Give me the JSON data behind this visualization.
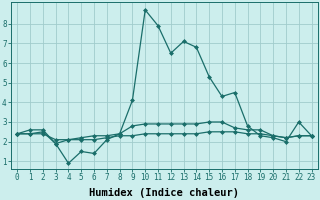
{
  "xlabel": "Humidex (Indice chaleur)",
  "background_color": "#cceeed",
  "grid_color": "#a0cccc",
  "line_color": "#1a6e6a",
  "x_ticks": [
    0,
    1,
    2,
    3,
    4,
    5,
    6,
    7,
    8,
    9,
    10,
    11,
    12,
    13,
    14,
    15,
    16,
    17,
    18,
    19,
    20,
    21,
    22,
    23
  ],
  "y_ticks": [
    1,
    2,
    3,
    4,
    5,
    6,
    7,
    8
  ],
  "ylim": [
    0.6,
    9.1
  ],
  "xlim": [
    -0.5,
    23.5
  ],
  "series": [
    {
      "x": [
        0,
        1,
        2,
        3,
        4,
        5,
        6,
        7,
        8,
        9,
        10,
        11,
        12,
        13,
        14,
        15,
        16,
        17,
        18,
        19,
        20,
        21,
        22,
        23
      ],
      "y": [
        2.4,
        2.6,
        2.6,
        1.9,
        0.9,
        1.5,
        1.4,
        2.1,
        2.4,
        4.1,
        8.7,
        7.9,
        6.5,
        7.1,
        6.8,
        5.3,
        4.3,
        4.5,
        2.8,
        2.3,
        2.2,
        2.0,
        3.0,
        2.3
      ]
    },
    {
      "x": [
        0,
        1,
        2,
        3,
        4,
        5,
        6,
        7,
        8,
        9,
        10,
        11,
        12,
        13,
        14,
        15,
        16,
        17,
        18,
        19,
        20,
        21,
        22,
        23
      ],
      "y": [
        2.4,
        2.4,
        2.5,
        1.9,
        2.1,
        2.2,
        2.3,
        2.3,
        2.4,
        2.8,
        2.9,
        2.9,
        2.9,
        2.9,
        2.9,
        3.0,
        3.0,
        2.7,
        2.6,
        2.6,
        2.3,
        2.2,
        2.3,
        2.3
      ]
    },
    {
      "x": [
        0,
        1,
        2,
        3,
        4,
        5,
        6,
        7,
        8,
        9,
        10,
        11,
        12,
        13,
        14,
        15,
        16,
        17,
        18,
        19,
        20,
        21,
        22,
        23
      ],
      "y": [
        2.4,
        2.4,
        2.4,
        2.1,
        2.1,
        2.1,
        2.1,
        2.2,
        2.3,
        2.3,
        2.4,
        2.4,
        2.4,
        2.4,
        2.4,
        2.5,
        2.5,
        2.5,
        2.4,
        2.4,
        2.3,
        2.2,
        2.3,
        2.3
      ]
    }
  ],
  "marker": "D",
  "marker_size": 2.0,
  "linewidth": 0.9,
  "tick_fontsize": 5.5,
  "xlabel_fontsize": 7.5
}
